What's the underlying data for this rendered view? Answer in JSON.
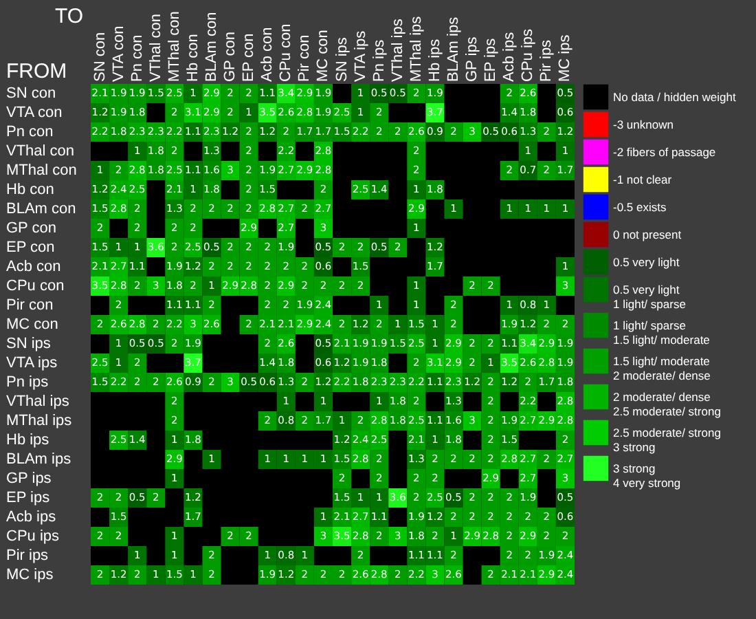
{
  "chart_data": {
    "type": "heatmap",
    "xlabel": "TO",
    "ylabel": "FROM",
    "data_labels": true,
    "legend": "right",
    "categories": [
      "SN con",
      "VTA con",
      "Pn con",
      "VThal con",
      "MThal con",
      "Hb con",
      "BLAm con",
      "GP con",
      "EP con",
      "Acb con",
      "CPu con",
      "Pir con",
      "MC con",
      "SN ips",
      "VTA ips",
      "Pn ips",
      "VThal ips",
      "MThal ips",
      "Hb ips",
      "BLAm ips",
      "GP ips",
      "EP ips",
      "Acb ips",
      "CPu ips",
      "Pir ips",
      "MC ips"
    ],
    "y_categories": [
      "SN con",
      "VTA con",
      "Pn con",
      "VThal con",
      "MThal con",
      "Hb con",
      "BLAm con",
      "GP con",
      "EP con",
      "Acb con",
      "CPu con",
      "Pir con",
      "MC con",
      "SN ips",
      "VTA ips",
      "Pn ips",
      "VThal ips",
      "MThal ips",
      "Hb ips",
      "BLAm ips",
      "GP ips",
      "EP ips",
      "Acb ips",
      "CPu ips",
      "Pir ips",
      "MC ips"
    ],
    "cells": [
      [
        2.1,
        1.9,
        1.9,
        1.5,
        2.5,
        1,
        2.9,
        2,
        2,
        1.1,
        3.4,
        2.9,
        1.9,
        null,
        1,
        0.5,
        0.5,
        2,
        1.9,
        null,
        null,
        null,
        2,
        2.6,
        null,
        0.5
      ],
      [
        1.2,
        1.9,
        1.8,
        null,
        2,
        3.1,
        2.9,
        2,
        1,
        3.5,
        2.6,
        2.8,
        1.9,
        2.5,
        1,
        2,
        null,
        null,
        3.7,
        null,
        null,
        null,
        1.4,
        1.8,
        null,
        0.6
      ],
      [
        2.2,
        1.8,
        2.3,
        2.3,
        2.2,
        1.1,
        2.3,
        1.2,
        2,
        1.2,
        2,
        1.7,
        1.7,
        1.5,
        2.2,
        2,
        2,
        2.6,
        0.9,
        2,
        3,
        0.5,
        0.6,
        1.3,
        2,
        1.2
      ],
      [
        null,
        null,
        1,
        1.8,
        2,
        null,
        1.3,
        null,
        2,
        null,
        2.2,
        null,
        2.8,
        null,
        null,
        null,
        null,
        2,
        null,
        null,
        null,
        null,
        null,
        1,
        null,
        1
      ],
      [
        1,
        2,
        2.8,
        1.8,
        2.5,
        1.1,
        1.6,
        3,
        2,
        1.9,
        2.7,
        2.9,
        2.8,
        null,
        null,
        null,
        null,
        2,
        null,
        null,
        null,
        null,
        2,
        0.7,
        2,
        1.7
      ],
      [
        1.2,
        2.4,
        2.5,
        null,
        2.1,
        1,
        1.8,
        null,
        2,
        1.5,
        null,
        null,
        2,
        null,
        2.5,
        1.4,
        null,
        1,
        1.8,
        null,
        null,
        null,
        null,
        null,
        null,
        null
      ],
      [
        1.5,
        2.8,
        2,
        null,
        1.3,
        2,
        2,
        2,
        2,
        2.8,
        2.7,
        2,
        2.7,
        null,
        null,
        null,
        null,
        2.9,
        null,
        1,
        null,
        null,
        1,
        1,
        1,
        1
      ],
      [
        2,
        null,
        2,
        null,
        2,
        2,
        null,
        null,
        2.9,
        null,
        2.7,
        null,
        3,
        null,
        null,
        null,
        null,
        1,
        null,
        null,
        null,
        null,
        null,
        null,
        null,
        null
      ],
      [
        1.5,
        1,
        1,
        3.6,
        2,
        2.5,
        0.5,
        2,
        2,
        2,
        1.9,
        null,
        0.5,
        2,
        2,
        0.5,
        2,
        null,
        1.2,
        null,
        null,
        null,
        null,
        null,
        null,
        null
      ],
      [
        2.1,
        2.7,
        1.1,
        null,
        1.9,
        1.2,
        2,
        2,
        2,
        2,
        2,
        2,
        0.6,
        null,
        1.5,
        null,
        null,
        null,
        1.7,
        null,
        null,
        null,
        null,
        null,
        null,
        1
      ],
      [
        3.5,
        2.8,
        2,
        3,
        1.8,
        2,
        1,
        2.9,
        2.8,
        2,
        2.9,
        2,
        2,
        2,
        2,
        null,
        null,
        1,
        null,
        null,
        2,
        2,
        null,
        null,
        null,
        3
      ],
      [
        null,
        2,
        null,
        null,
        1.1,
        1.1,
        2,
        null,
        null,
        2,
        2,
        1.9,
        2.4,
        null,
        null,
        1,
        null,
        1,
        null,
        2,
        null,
        null,
        1,
        0.8,
        1,
        null
      ],
      [
        2,
        2.6,
        2.8,
        2,
        2.2,
        3,
        2.6,
        null,
        2,
        2.1,
        2.1,
        2.9,
        2.4,
        2,
        1.2,
        2,
        1,
        1.5,
        1,
        2,
        null,
        null,
        1.9,
        1.2,
        2,
        2
      ],
      [
        null,
        1,
        0.5,
        0.5,
        2,
        1.9,
        null,
        null,
        null,
        2,
        2.6,
        null,
        0.5,
        2.1,
        1.9,
        1.9,
        1.5,
        2.5,
        1,
        2.9,
        2,
        2,
        1.1,
        3.4,
        2.9,
        1.9
      ],
      [
        2.5,
        1,
        2,
        null,
        null,
        3.7,
        null,
        null,
        null,
        1.4,
        1.8,
        null,
        0.6,
        1.2,
        1.9,
        1.8,
        null,
        2,
        3.1,
        2.9,
        2,
        1,
        3.5,
        2.6,
        2.8,
        1.9
      ],
      [
        1.5,
        2.2,
        2,
        2,
        2.6,
        0.9,
        2,
        3,
        0.5,
        0.6,
        1.3,
        2,
        1.2,
        2.2,
        1.8,
        2.3,
        2.3,
        2.2,
        1.1,
        2.3,
        1.2,
        2,
        1.2,
        2,
        1.7,
        1.8
      ],
      [
        null,
        null,
        null,
        null,
        2,
        null,
        null,
        null,
        null,
        null,
        1,
        null,
        1,
        null,
        null,
        1,
        1.8,
        2,
        null,
        1.3,
        null,
        2,
        null,
        2.2,
        null,
        2.8
      ],
      [
        null,
        null,
        null,
        null,
        2,
        null,
        null,
        null,
        null,
        2,
        0.8,
        2,
        1.7,
        1,
        2,
        2.8,
        1.8,
        2.5,
        1.1,
        1.6,
        3,
        2,
        1.9,
        2.7,
        2.9,
        2.8
      ],
      [
        null,
        2.5,
        1.4,
        null,
        1,
        1.8,
        null,
        null,
        null,
        null,
        null,
        null,
        null,
        1.2,
        2.4,
        2.5,
        null,
        2.1,
        1,
        1.8,
        null,
        2,
        1.5,
        null,
        null,
        2
      ],
      [
        null,
        null,
        null,
        null,
        2.9,
        null,
        1,
        null,
        null,
        1,
        1,
        1,
        1,
        1.5,
        2.8,
        2,
        null,
        1.3,
        2,
        2,
        2,
        2,
        2.8,
        2.7,
        2,
        2.7
      ],
      [
        null,
        null,
        null,
        null,
        1,
        null,
        null,
        null,
        null,
        null,
        null,
        null,
        null,
        2,
        null,
        2,
        null,
        2,
        2,
        null,
        null,
        2.9,
        null,
        2.7,
        null,
        3
      ],
      [
        2,
        2,
        0.5,
        2,
        null,
        1.2,
        null,
        null,
        null,
        null,
        null,
        null,
        null,
        1.5,
        1,
        1,
        3.6,
        2,
        2.5,
        0.5,
        2,
        2,
        2,
        1.9,
        null,
        0.5
      ],
      [
        null,
        1.5,
        null,
        null,
        null,
        1.7,
        null,
        null,
        null,
        null,
        null,
        null,
        1,
        2.1,
        2.7,
        1.1,
        null,
        1.9,
        1.2,
        2,
        2,
        2,
        2,
        2,
        2,
        0.6
      ],
      [
        2,
        2,
        null,
        null,
        1,
        null,
        null,
        2,
        2,
        null,
        null,
        null,
        3,
        3.5,
        2.8,
        2,
        3,
        1.8,
        2,
        1,
        2.9,
        2.8,
        2,
        2.9,
        2,
        2
      ],
      [
        null,
        null,
        1,
        null,
        1,
        null,
        2,
        null,
        null,
        1,
        0.8,
        1,
        null,
        null,
        2,
        null,
        null,
        1.1,
        1.1,
        2,
        null,
        null,
        2,
        2,
        1.9,
        2.4
      ],
      [
        2,
        1.2,
        2,
        1,
        1.5,
        1,
        2,
        null,
        null,
        1.9,
        1.2,
        2,
        2,
        2,
        2.6,
        2.8,
        2,
        2.2,
        3,
        2.6,
        null,
        2,
        2.1,
        2.1,
        2.9,
        2.4
      ]
    ],
    "series": [
      {
        "name": "No data / hidden weight",
        "color": "#000000",
        "values": [
          null,
          null,
          null,
          null,
          null,
          null,
          null,
          null,
          null,
          null,
          null,
          null,
          null,
          null,
          null,
          null,
          null,
          null,
          null,
          null,
          null,
          null,
          null,
          null,
          null,
          null
        ]
      },
      {
        "name": "-3 unknown",
        "color": "#ff0000",
        "values": [
          null,
          null,
          null,
          null,
          null,
          null,
          null,
          null,
          null,
          null,
          null,
          null,
          null,
          null,
          null,
          null,
          null,
          null,
          null,
          null,
          null,
          null,
          null,
          null,
          null,
          null
        ]
      },
      {
        "name": "-2 fibers of passage",
        "color": "#ff00ff",
        "values": [
          null,
          null,
          null,
          null,
          null,
          null,
          null,
          null,
          null,
          null,
          null,
          null,
          null,
          null,
          null,
          null,
          null,
          null,
          null,
          null,
          null,
          null,
          null,
          null,
          null,
          null
        ]
      },
      {
        "name": "-1 not clear",
        "color": "#ffff00",
        "values": [
          null,
          null,
          null,
          null,
          null,
          null,
          null,
          null,
          null,
          null,
          null,
          null,
          null,
          null,
          null,
          null,
          null,
          null,
          null,
          null,
          null,
          null,
          null,
          null,
          null,
          null
        ]
      },
      {
        "name": "-0.5 exists",
        "color": "#0000ff",
        "values": [
          null,
          null,
          null,
          null,
          null,
          null,
          null,
          null,
          null,
          null,
          null,
          null,
          null,
          null,
          null,
          null,
          null,
          null,
          null,
          null,
          null,
          null,
          null,
          null,
          null,
          null
        ]
      },
      {
        "name": "0 not present",
        "color": "#990000",
        "values": [
          null,
          null,
          null,
          null,
          null,
          null,
          null,
          null,
          null,
          null,
          null,
          null,
          null,
          null,
          null,
          null,
          null,
          null,
          null,
          null,
          null,
          null,
          null,
          null,
          null,
          null
        ]
      },
      {
        "name": "0.5 very light",
        "color": "#005f00",
        "values": [
          null,
          null,
          null,
          null,
          null,
          null,
          null,
          null,
          null,
          null,
          null,
          null,
          null,
          null,
          null,
          null,
          null,
          null,
          null,
          null,
          null,
          null,
          null,
          null,
          null,
          null
        ]
      },
      {
        "name": "0.5 very light\n1 light/ sparse",
        "color": "#007400",
        "values": [
          null,
          null,
          null,
          null,
          null,
          null,
          null,
          null,
          null,
          null,
          null,
          null,
          null,
          null,
          null,
          null,
          null,
          null,
          null,
          null,
          null,
          null,
          null,
          null,
          null,
          null
        ]
      },
      {
        "name": "1 light/ sparse\n1.5 light/ moderate",
        "color": "#008a00",
        "values": [
          null,
          null,
          null,
          null,
          null,
          null,
          null,
          null,
          null,
          null,
          null,
          null,
          null,
          null,
          null,
          null,
          null,
          null,
          null,
          null,
          null,
          null,
          null,
          null,
          null,
          null
        ]
      },
      {
        "name": "1.5 light/ moderate\n2 moderate/ dense",
        "color": "#00a000",
        "values": [
          null,
          null,
          null,
          null,
          null,
          null,
          null,
          null,
          null,
          null,
          null,
          null,
          null,
          null,
          null,
          null,
          null,
          null,
          null,
          null,
          null,
          null,
          null,
          null,
          null,
          null
        ]
      },
      {
        "name": "2 moderate/ dense\n2.5 moderate/ strong",
        "color": "#00b400",
        "values": [
          null,
          null,
          null,
          null,
          null,
          null,
          null,
          null,
          null,
          null,
          null,
          null,
          null,
          null,
          null,
          null,
          null,
          null,
          null,
          null,
          null,
          null,
          null,
          null,
          null,
          null
        ]
      },
      {
        "name": "2.5 moderate/ strong\n3 strong",
        "color": "#00cc00",
        "values": [
          null,
          null,
          null,
          null,
          null,
          null,
          null,
          null,
          null,
          null,
          null,
          null,
          null,
          null,
          null,
          null,
          null,
          null,
          null,
          null,
          null,
          null,
          null,
          null,
          null,
          null
        ]
      },
      {
        "name": "3 strong\n4 very strong",
        "color": "#22ff22",
        "values": [
          null,
          null,
          null,
          null,
          null,
          null,
          null,
          null,
          null,
          null,
          null,
          null,
          null,
          null,
          null,
          null,
          null,
          null,
          null,
          null,
          null,
          null,
          null,
          null,
          null,
          null
        ]
      }
    ]
  }
}
